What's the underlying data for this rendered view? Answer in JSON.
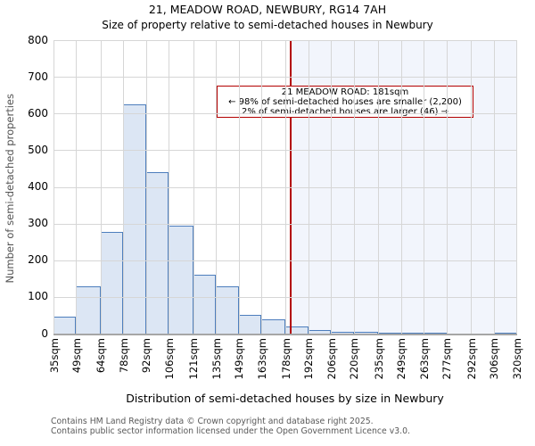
{
  "chart_data": {
    "type": "bar",
    "title": "21, MEADOW ROAD, NEWBURY, RG14 7AH",
    "subtitle": "Size of property relative to semi-detached houses in Newbury",
    "xlabel": "Distribution of semi-detached houses by size in Newbury",
    "ylabel": "Number of semi-detached properties",
    "bin_edges_sqm": [
      35,
      49,
      64,
      78,
      92,
      106,
      121,
      135,
      149,
      163,
      178,
      192,
      206,
      220,
      235,
      249,
      263,
      277,
      292,
      306,
      320
    ],
    "bin_labels": [
      "35sqm",
      "49sqm",
      "64sqm",
      "78sqm",
      "92sqm",
      "106sqm",
      "121sqm",
      "135sqm",
      "149sqm",
      "163sqm",
      "178sqm",
      "192sqm",
      "206sqm",
      "220sqm",
      "235sqm",
      "249sqm",
      "263sqm",
      "277sqm",
      "292sqm",
      "306sqm",
      "320sqm"
    ],
    "values": [
      45,
      130,
      278,
      625,
      440,
      295,
      160,
      128,
      52,
      40,
      20,
      10,
      5,
      4,
      3,
      3,
      2,
      0,
      0,
      2
    ],
    "xlim": [
      35,
      320
    ],
    "ylim": [
      0,
      800
    ],
    "yticks": [
      0,
      100,
      200,
      300,
      400,
      500,
      600,
      700,
      800
    ],
    "grid": true,
    "marker": {
      "value_sqm": 181,
      "annotation_line1": "21 MEADOW ROAD: 181sqm",
      "annotation_line2": "← 98% of semi-detached houses are smaller (2,200)",
      "annotation_line3": "2% of semi-detached houses are larger (46) →"
    },
    "colors": {
      "bar_fill": "#dce6f4",
      "bar_border": "#4d7ebd",
      "marker_line": "#b30000",
      "annotation_border": "#b30000",
      "shade_right_of_marker": "#f2f5fc",
      "gridline": "#d6d6d6",
      "axis_line": "#a6a6a6",
      "footer_text": "#595959"
    }
  },
  "footer": {
    "line1": "Contains HM Land Registry data © Crown copyright and database right 2025.",
    "line2": "Contains public sector information licensed under the Open Government Licence v3.0."
  }
}
